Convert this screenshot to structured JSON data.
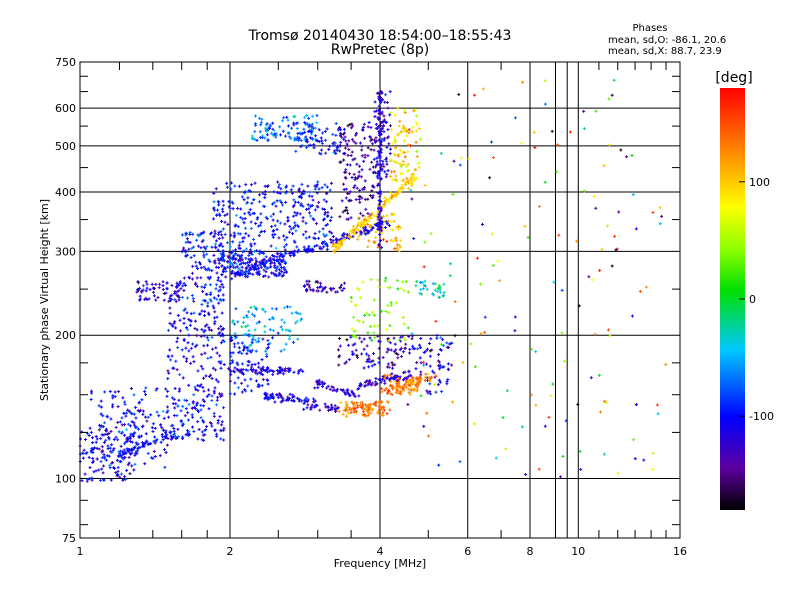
{
  "chart_data": {
    "type": "scatter",
    "title": "Tromsø 20140430 18:54:00–18:55:43",
    "subtitle": "RwPretec (8p)",
    "xlabel": "Frequency [MHz]",
    "ylabel": "Stationary phase Virtual Height [km]",
    "x_scale": "log",
    "y_scale": "log",
    "xlim": [
      1,
      16
    ],
    "ylim": [
      75,
      750
    ],
    "x_ticks": [
      1,
      2,
      4,
      6,
      8,
      10,
      16
    ],
    "y_ticks": [
      75,
      100,
      200,
      300,
      400,
      500,
      600,
      750
    ],
    "grid": true,
    "annotation": {
      "heading": "Phases",
      "line_o": "mean, sd,O: -86.1, 20.6",
      "line_x": "mean, sd,X:  88.7, 23.9"
    },
    "colorbar": {
      "label": "[deg]",
      "ticks": [
        100,
        0,
        -100
      ],
      "range": [
        -180,
        180
      ],
      "colormap": "rainbow"
    },
    "clusters": [
      {
        "f": [
          1.0,
          1.3
        ],
        "h": [
          98,
          130
        ],
        "phase": -110,
        "n": 120
      },
      {
        "f": [
          1.05,
          1.5
        ],
        "h": [
          105,
          155
        ],
        "phase": -100,
        "n": 160
      },
      {
        "f": [
          1.3,
          1.6
        ],
        "h": [
          235,
          260
        ],
        "phase": -115,
        "n": 70
      },
      {
        "f": [
          1.5,
          1.95
        ],
        "h": [
          120,
          230
        ],
        "phase": -105,
        "n": 260
      },
      {
        "f": [
          1.6,
          1.95
        ],
        "h": [
          230,
          330
        ],
        "phase": -100,
        "n": 150
      },
      {
        "f": [
          1.9,
          2.6
        ],
        "h": [
          265,
          300
        ],
        "phase": -100,
        "n": 200
      },
      {
        "f": [
          1.85,
          3.2
        ],
        "h": [
          300,
          420
        ],
        "phase": -95,
        "n": 300
      },
      {
        "f": [
          2.0,
          2.8
        ],
        "h": [
          185,
          230
        ],
        "phase": -55,
        "n": 90
      },
      {
        "f": [
          2.0,
          2.4
        ],
        "h": [
          150,
          200
        ],
        "phase": -100,
        "n": 80
      },
      {
        "f": [
          2.2,
          3.0
        ],
        "h": [
          510,
          580
        ],
        "phase": -65,
        "n": 90
      },
      {
        "f": [
          2.7,
          3.4
        ],
        "h": [
          480,
          560
        ],
        "phase": -95,
        "n": 70
      },
      {
        "f": [
          3.3,
          3.9
        ],
        "h": [
          350,
          560
        ],
        "phase": -140,
        "n": 140
      },
      {
        "f": [
          3.9,
          4.2
        ],
        "h": [
          430,
          650
        ],
        "phase": -125,
        "n": 80
      },
      {
        "f": [
          4.2,
          4.8
        ],
        "h": [
          420,
          600
        ],
        "phase": 95,
        "n": 90
      },
      {
        "f": [
          3.6,
          4.4
        ],
        "h": [
          300,
          360
        ],
        "phase": 110,
        "n": 70
      },
      {
        "f": [
          3.3,
          4.8
        ],
        "h": [
          170,
          200
        ],
        "phase": -130,
        "n": 90
      },
      {
        "f": [
          4.0,
          4.8
        ],
        "h": [
          150,
          165
        ],
        "phase": 130,
        "n": 70
      },
      {
        "f": [
          2.8,
          3.4
        ],
        "h": [
          245,
          260
        ],
        "phase": -125,
        "n": 40
      },
      {
        "f": [
          3.5,
          4.6
        ],
        "h": [
          195,
          265
        ],
        "phase": 40,
        "n": 60
      },
      {
        "f": [
          4.8,
          5.6
        ],
        "h": [
          150,
          200
        ],
        "phase": -110,
        "n": 60
      },
      {
        "f": [
          3.3,
          4.2
        ],
        "h": [
          135,
          145
        ],
        "phase": 125,
        "n": 50
      },
      {
        "f": [
          4.7,
          5.4
        ],
        "h": [
          240,
          260
        ],
        "phase": -30,
        "n": 30
      }
    ],
    "traces": [
      {
        "f": [
          2.0,
          4.2
        ],
        "h": [
          268,
          345
        ],
        "phase": -110,
        "n": 160
      },
      {
        "f": [
          3.2,
          4.7
        ],
        "h": [
          300,
          430
        ],
        "phase": 100,
        "n": 130
      },
      {
        "f": [
          4.0,
          4.0
        ],
        "h": [
          300,
          650
        ],
        "phase": -120,
        "n": 90
      },
      {
        "f": [
          2.0,
          2.8
        ],
        "h": [
          170,
          168
        ],
        "phase": -115,
        "n": 70
      },
      {
        "f": [
          2.3,
          3.0
        ],
        "h": [
          150,
          145
        ],
        "phase": -110,
        "n": 60
      },
      {
        "f": [
          2.9,
          3.6
        ],
        "h": [
          160,
          150
        ],
        "phase": -120,
        "n": 45
      },
      {
        "f": [
          3.6,
          4.6
        ],
        "h": [
          157,
          165
        ],
        "phase": -120,
        "n": 60
      },
      {
        "f": [
          4.2,
          5.2
        ],
        "h": [
          155,
          165
        ],
        "phase": 130,
        "n": 60
      },
      {
        "f": [
          3.4,
          4.2
        ],
        "h": [
          140,
          142
        ],
        "phase": 130,
        "n": 55
      },
      {
        "f": [
          2.8,
          3.3
        ],
        "h": [
          140,
          141
        ],
        "phase": -120,
        "n": 30
      },
      {
        "f": [
          1.2,
          1.55
        ],
        "h": [
          112,
          125
        ],
        "phase": -100,
        "n": 60
      }
    ],
    "scattered": {
      "f": [
        4.5,
        15
      ],
      "h": [
        100,
        700
      ],
      "n": 160
    }
  }
}
